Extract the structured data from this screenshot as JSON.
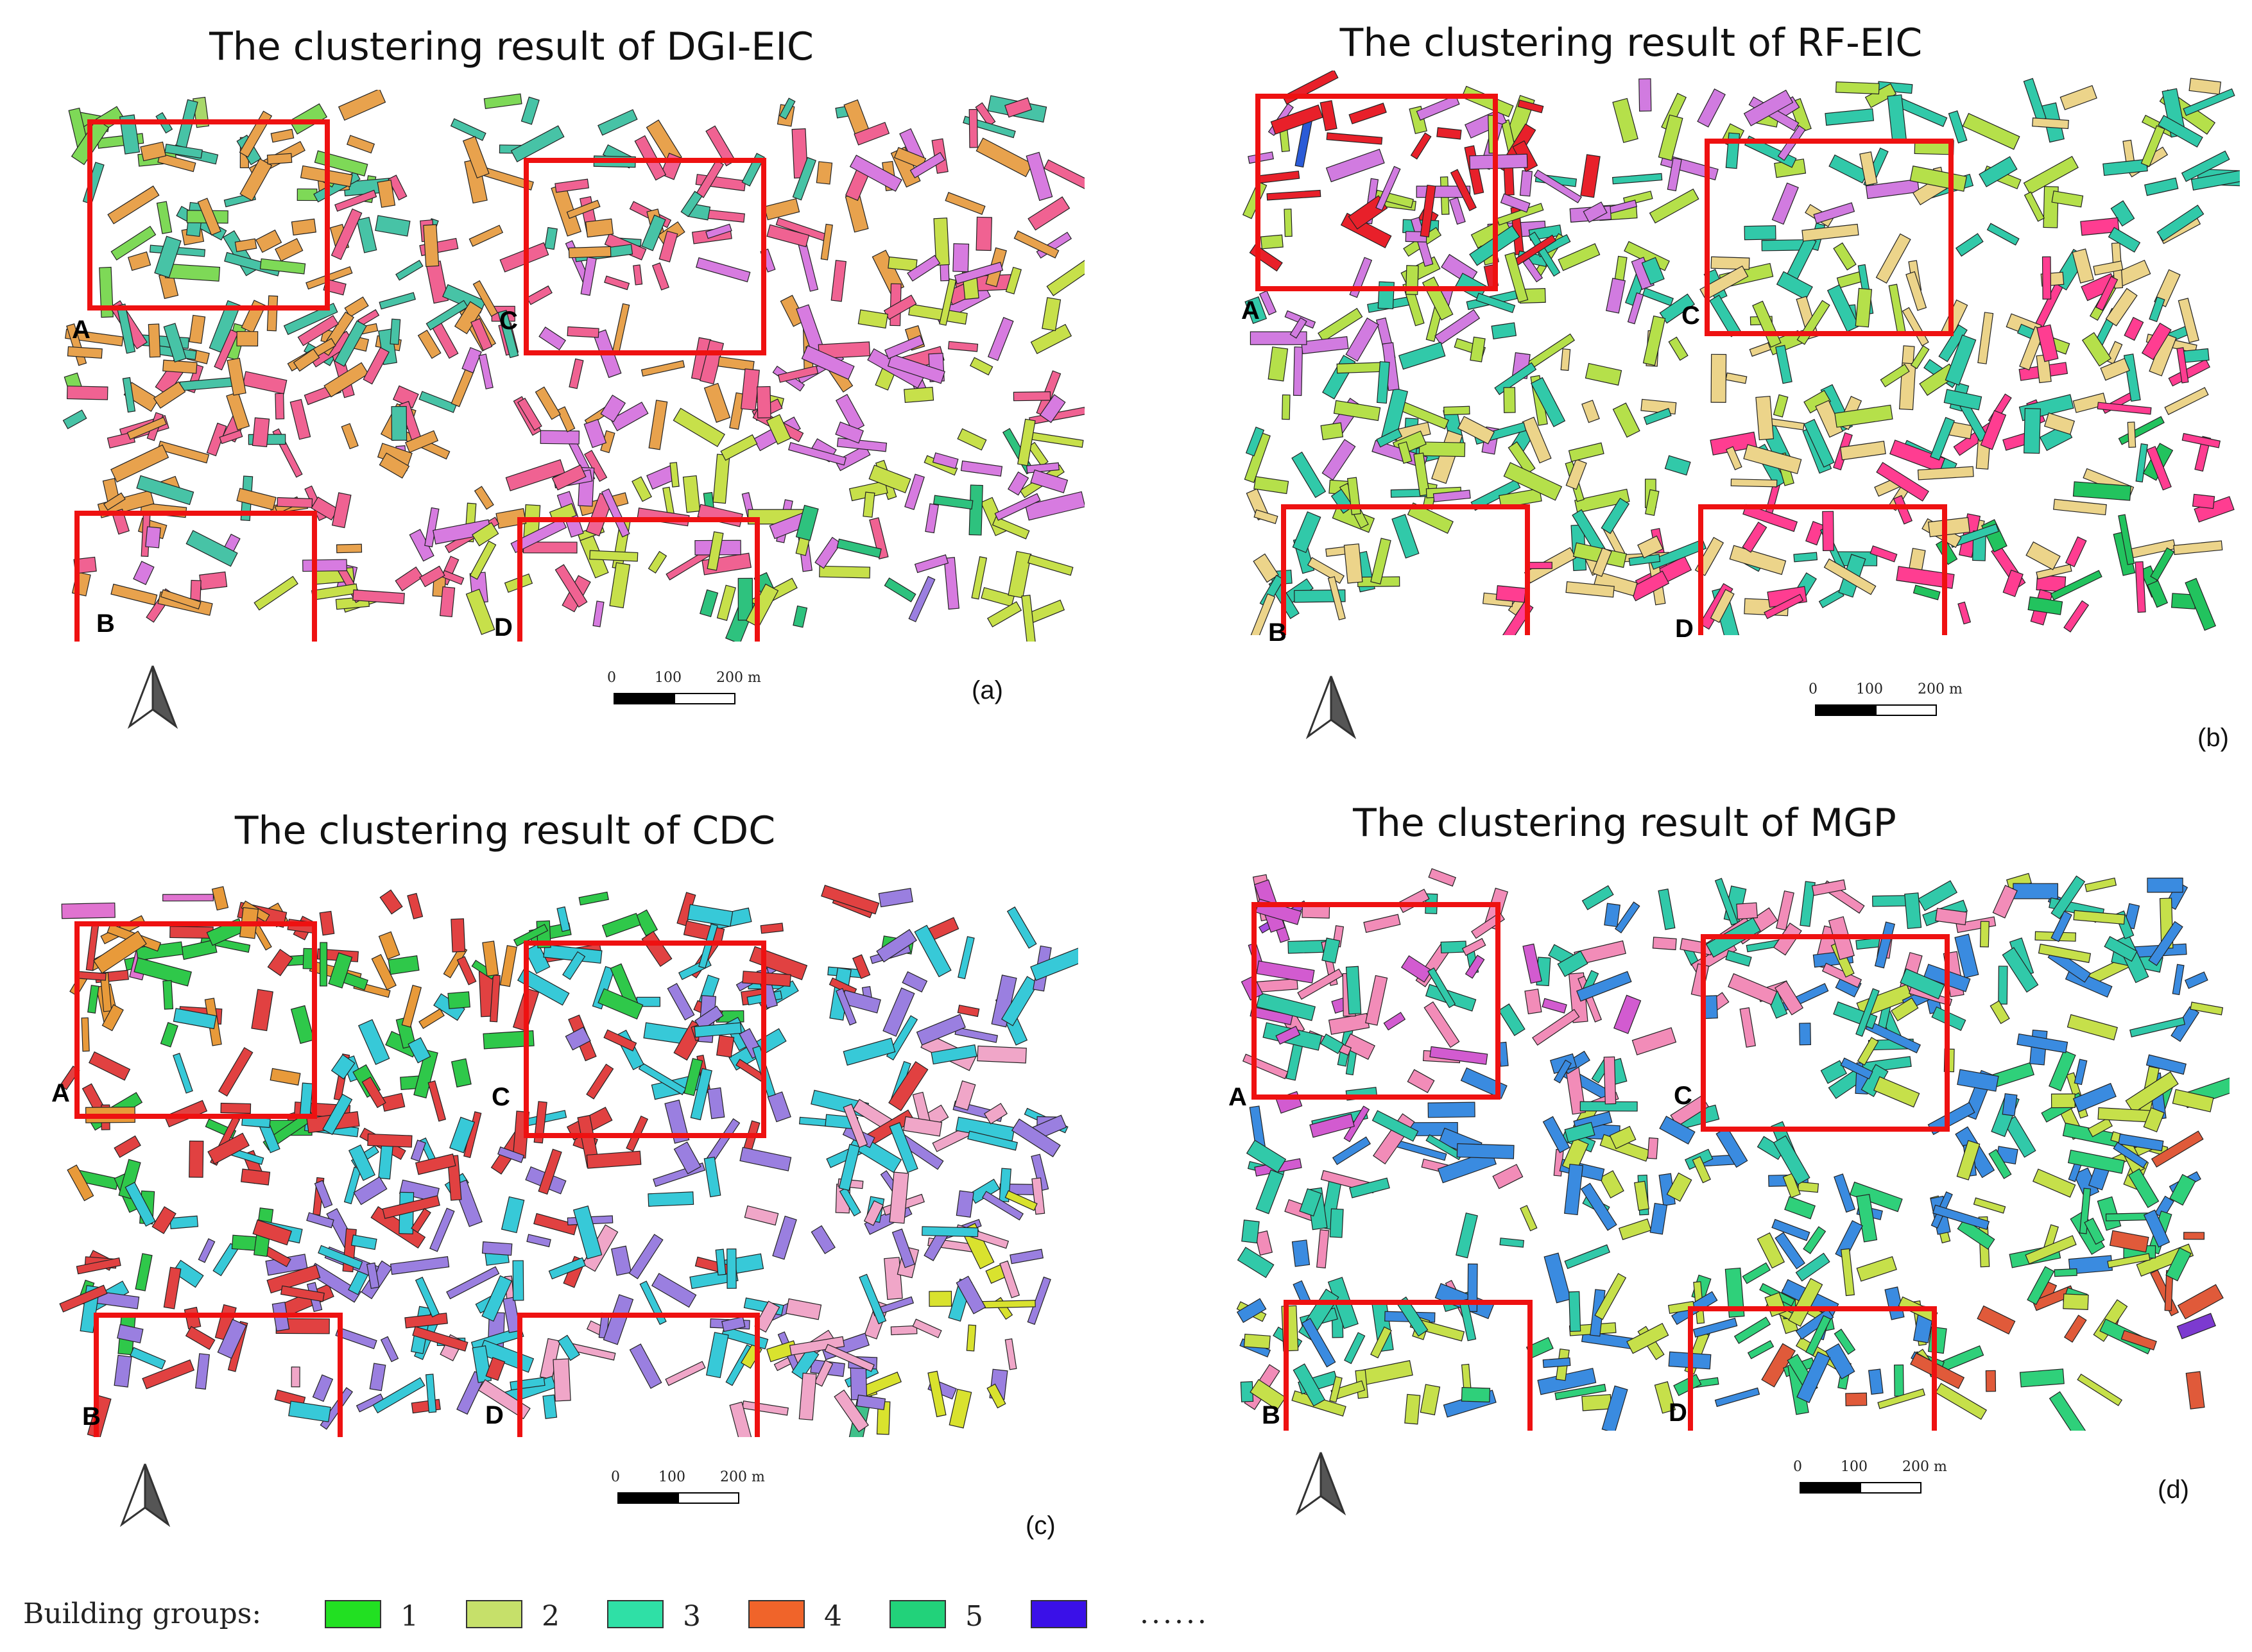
{
  "panels": [
    {
      "title": "The clustering result of DGI-EIC",
      "label": "(a)",
      "boxes": [
        "A",
        "B",
        "C",
        "D"
      ],
      "palette": [
        "#a8d86a",
        "#7ed957",
        "#47c3a6",
        "#e8a24d",
        "#f06292",
        "#d77be0",
        "#c7e04a",
        "#2ec27e",
        "#9b7fe0",
        "#e06bd8",
        "#5ad1c8",
        "#f2c94c"
      ]
    },
    {
      "title": "The clustering result of RF-EIC",
      "label": "(b)",
      "boxes": [
        "A",
        "B",
        "C",
        "D"
      ],
      "palette": [
        "#2a5bd7",
        "#e8202a",
        "#d17be0",
        "#b5e04a",
        "#31c9a9",
        "#ecd48a",
        "#ff3d91",
        "#22c35e",
        "#3a3ad0",
        "#f07ef5",
        "#56b8e6",
        "#8e44d8"
      ]
    },
    {
      "title": "The clustering result of CDC",
      "label": "(c)",
      "boxes": [
        "A",
        "B",
        "C",
        "D"
      ],
      "palette": [
        "#e073d0",
        "#e89a3a",
        "#2fc84a",
        "#e14141",
        "#37c9d8",
        "#9a7fe0",
        "#f0a6c8",
        "#d9e22e",
        "#40c08a",
        "#ff5fa2",
        "#5476e0",
        "#e6c26a"
      ]
    },
    {
      "title": "The clustering result of MGP",
      "label": "(d)",
      "boxes": [
        "A",
        "B",
        "C",
        "D"
      ],
      "palette": [
        "#a64be0",
        "#d25bd0",
        "#f28cb8",
        "#31c9a9",
        "#3a8be0",
        "#c6e04a",
        "#2fd07a",
        "#e05a3a",
        "#7c3ad0",
        "#f0a0c0",
        "#5fd8b0",
        "#6a5acd"
      ]
    }
  ],
  "scale": {
    "t0": "0",
    "t1": "100",
    "t2": "200 m"
  },
  "legend": {
    "title": "Building groups:",
    "items": [
      {
        "n": "1",
        "color": "#22e022"
      },
      {
        "n": "2",
        "color": "#c6e06a"
      },
      {
        "n": "3",
        "color": "#2fe0a6"
      },
      {
        "n": "4",
        "color": "#f0642a"
      },
      {
        "n": "5",
        "color": "#22d27a"
      },
      {
        "n": "",
        "color": "#3a10e8"
      }
    ],
    "more": "......"
  }
}
